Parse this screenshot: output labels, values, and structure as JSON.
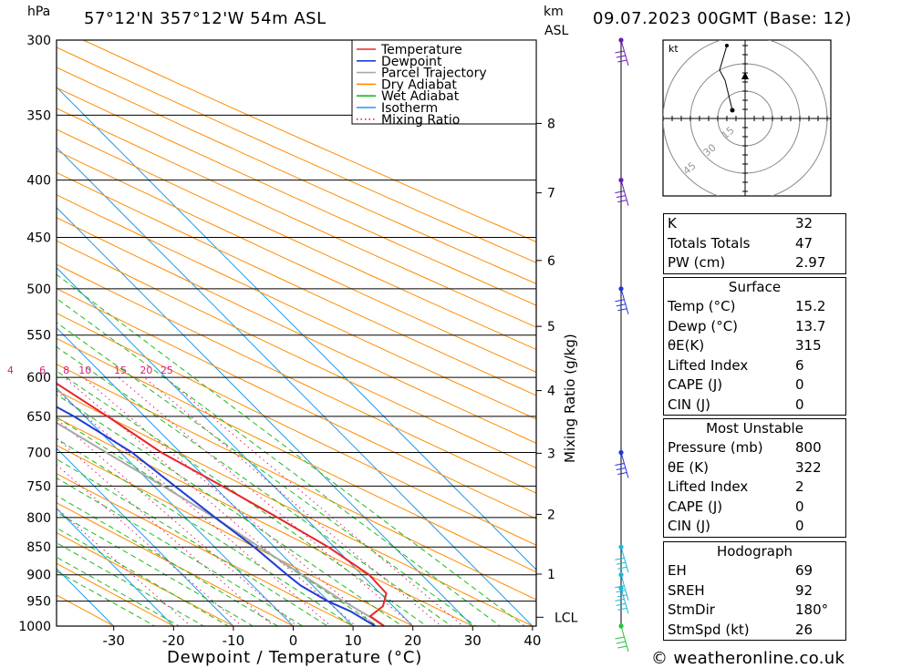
{
  "header": {
    "location": "57°12'N  357°12'W  54m  ASL",
    "datetime": "09.07.2023  00GMT  (Base: 12)",
    "hpa_label": "hPa",
    "km_label": "km",
    "asl_label": "ASL"
  },
  "footer": {
    "credit": "© weatheronline.co.uk"
  },
  "chart_data": {
    "type": "skew-t",
    "xlabel": "Dewpoint / Temperature (°C)",
    "ylabel_right": "Mixing Ratio (g/kg)",
    "x_ticks": [
      -30,
      -20,
      -10,
      0,
      10,
      20,
      30,
      40
    ],
    "pressure_levels": [
      300,
      350,
      400,
      450,
      500,
      550,
      600,
      650,
      700,
      750,
      800,
      850,
      900,
      950,
      1000
    ],
    "km_ticks": [
      "1",
      "2",
      "3",
      "4",
      "5",
      "6",
      "7",
      "8"
    ],
    "lcl_label": "LCL",
    "mixing_ratio_labels": [
      "1",
      "2",
      "3",
      "4",
      "6",
      "8",
      "10",
      "15",
      "20",
      "25"
    ],
    "legend": [
      "Temperature",
      "Dewpoint",
      "Parcel Trajectory",
      "Dry Adiabat",
      "Wet Adiabat",
      "Isotherm",
      "Mixing Ratio"
    ],
    "colors": {
      "temperature": "#e8262a",
      "dewpoint": "#1f3ed6",
      "parcel": "#a9a9a9",
      "dry_adiabat": "#ff8c00",
      "wet_adiabat": "#1dbb1d",
      "isotherm": "#1e9be8",
      "mixing_ratio": "#e0187e",
      "wind": "#6a1bb8"
    },
    "temperature": [
      {
        "p": 1000,
        "t": 15.2
      },
      {
        "p": 980,
        "t": 14.5
      },
      {
        "p": 960,
        "t": 18.3
      },
      {
        "p": 935,
        "t": 21.0
      },
      {
        "p": 900,
        "t": 21.2
      },
      {
        "p": 850,
        "t": 19.0
      },
      {
        "p": 800,
        "t": 15.4
      },
      {
        "p": 750,
        "t": 11.4
      },
      {
        "p": 700,
        "t": 6.8
      },
      {
        "p": 650,
        "t": 3.8
      },
      {
        "p": 600,
        "t": 0.2
      },
      {
        "p": 550,
        "t": -3.7
      },
      {
        "p": 500,
        "t": -7.5
      },
      {
        "p": 450,
        "t": -13.5
      },
      {
        "p": 400,
        "t": -20.0
      },
      {
        "p": 350,
        "t": -26.7
      },
      {
        "p": 300,
        "t": -35.0
      }
    ],
    "dewpoint": [
      {
        "p": 1000,
        "t": 13.7
      },
      {
        "p": 970,
        "t": 12.0
      },
      {
        "p": 950,
        "t": 9.9
      },
      {
        "p": 920,
        "t": 8.0
      },
      {
        "p": 900,
        "t": 7.5
      },
      {
        "p": 850,
        "t": 6.6
      },
      {
        "p": 800,
        "t": 5.0
      },
      {
        "p": 750,
        "t": 3.5
      },
      {
        "p": 700,
        "t": 1.9
      },
      {
        "p": 650,
        "t": -1.8
      },
      {
        "p": 600,
        "t": -7.3
      },
      {
        "p": 550,
        "t": -16.0
      },
      {
        "p": 500,
        "t": -27.4
      },
      {
        "p": 450,
        "t": -25.9
      },
      {
        "p": 400,
        "t": -45.0
      },
      {
        "p": 350,
        "t": -56.8
      },
      {
        "p": 300,
        "t": -67.0
      }
    ],
    "parcel": [
      {
        "p": 1000,
        "t": 15.2
      },
      {
        "p": 980,
        "t": 14.3
      },
      {
        "p": 950,
        "t": 12.5
      },
      {
        "p": 900,
        "t": 10.0
      },
      {
        "p": 850,
        "t": 7.5
      },
      {
        "p": 800,
        "t": 4.9
      },
      {
        "p": 750,
        "t": 1.5
      },
      {
        "p": 700,
        "t": -2.4
      },
      {
        "p": 650,
        "t": -6.5
      },
      {
        "p": 600,
        "t": -11.0
      },
      {
        "p": 550,
        "t": -16.2
      },
      {
        "p": 500,
        "t": -22.5
      },
      {
        "p": 450,
        "t": -28.5
      },
      {
        "p": 400,
        "t": -37.5
      },
      {
        "p": 350,
        "t": -47.0
      },
      {
        "p": 300,
        "t": -59.0
      }
    ]
  },
  "indices": {
    "basic": [
      {
        "label": "K",
        "value": "32"
      },
      {
        "label": "Totals Totals",
        "value": "47"
      },
      {
        "label": "PW (cm)",
        "value": "2.97"
      }
    ],
    "surface": {
      "title": "Surface",
      "rows": [
        {
          "label": "Temp (°C)",
          "value": "15.2"
        },
        {
          "label": "Dewp (°C)",
          "value": "13.7"
        },
        {
          "label": "θE(K)",
          "value": "315"
        },
        {
          "label": "Lifted Index",
          "value": "6"
        },
        {
          "label": "CAPE (J)",
          "value": "0"
        },
        {
          "label": "CIN (J)",
          "value": "0"
        }
      ]
    },
    "most_unstable": {
      "title": "Most Unstable",
      "rows": [
        {
          "label": "Pressure (mb)",
          "value": "800"
        },
        {
          "label": "θE (K)",
          "value": "322"
        },
        {
          "label": "Lifted Index",
          "value": "2"
        },
        {
          "label": "CAPE (J)",
          "value": "0"
        },
        {
          "label": "CIN (J)",
          "value": "0"
        }
      ]
    },
    "hodograph": {
      "title": "Hodograph",
      "rows": [
        {
          "label": "EH",
          "value": "69"
        },
        {
          "label": "SREH",
          "value": "92"
        },
        {
          "label": "StmDir",
          "value": "180°"
        },
        {
          "label": "StmSpd (kt)",
          "value": "26"
        }
      ]
    }
  },
  "hodograph_plot": {
    "unit_label": "kt",
    "ring_labels": [
      "15",
      "30",
      "45"
    ]
  }
}
